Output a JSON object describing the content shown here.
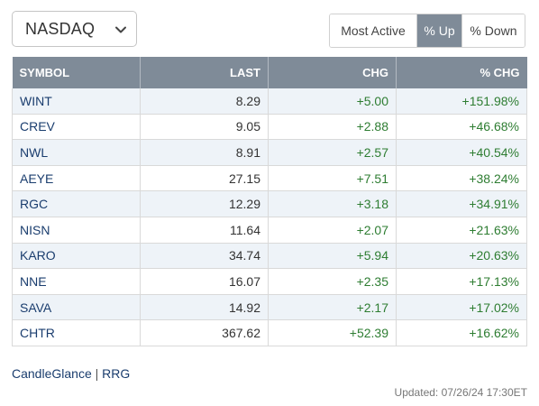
{
  "exchange_select": {
    "value": "NASDAQ"
  },
  "toggle": {
    "buttons": [
      {
        "label": "Most Active",
        "active": false
      },
      {
        "label": "% Up",
        "active": true
      },
      {
        "label": "% Down",
        "active": false
      }
    ]
  },
  "table": {
    "headers": [
      "SYMBOL",
      "LAST",
      "CHG",
      "% CHG"
    ],
    "rows": [
      {
        "symbol": "WINT",
        "last": "8.29",
        "chg": "+5.00",
        "pct": "+151.98%"
      },
      {
        "symbol": "CREV",
        "last": "9.05",
        "chg": "+2.88",
        "pct": "+46.68%"
      },
      {
        "symbol": "NWL",
        "last": "8.91",
        "chg": "+2.57",
        "pct": "+40.54%"
      },
      {
        "symbol": "AEYE",
        "last": "27.15",
        "chg": "+7.51",
        "pct": "+38.24%"
      },
      {
        "symbol": "RGC",
        "last": "12.29",
        "chg": "+3.18",
        "pct": "+34.91%"
      },
      {
        "symbol": "NISN",
        "last": "11.64",
        "chg": "+2.07",
        "pct": "+21.63%"
      },
      {
        "symbol": "KARO",
        "last": "34.74",
        "chg": "+5.94",
        "pct": "+20.63%"
      },
      {
        "symbol": "NNE",
        "last": "16.07",
        "chg": "+2.35",
        "pct": "+17.13%"
      },
      {
        "symbol": "SAVA",
        "last": "14.92",
        "chg": "+2.17",
        "pct": "+17.02%"
      },
      {
        "symbol": "CHTR",
        "last": "367.62",
        "chg": "+52.39",
        "pct": "+16.62%"
      }
    ]
  },
  "footer": {
    "link_candleglance": "CandleGlance",
    "separator": "|",
    "link_rrg": "RRG",
    "updated": "Updated: 07/26/24 17:30ET"
  },
  "colors": {
    "header_bg": "#7f8b98",
    "row_alt_bg": "#eef3f8",
    "positive": "#2e7d32",
    "link": "#1a3d6e"
  },
  "icons": {
    "dropdown": "chevron-down-icon"
  }
}
